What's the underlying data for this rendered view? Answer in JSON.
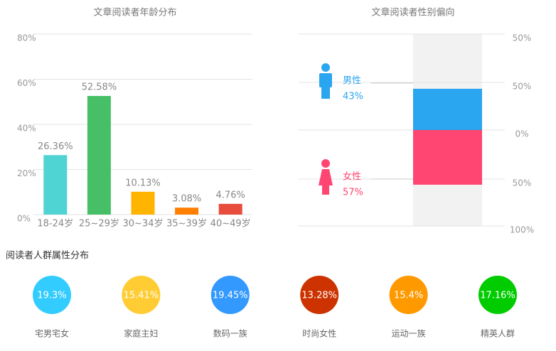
{
  "chart_data": [
    {
      "type": "bar",
      "title": "文章阅读者年龄分布",
      "categories": [
        "18-24岁",
        "25~29岁",
        "30~34岁",
        "35~39岁",
        "40~49岁"
      ],
      "values": [
        26.36,
        52.58,
        10.13,
        3.08,
        4.76
      ],
      "value_labels": [
        "26.36%",
        "52.58%",
        "10.13%",
        "3.08%",
        "4.76%"
      ],
      "colors": [
        "#4fd3d3",
        "#46bf66",
        "#ffb400",
        "#ff7f00",
        "#e84c3d"
      ],
      "ylim": [
        0,
        80
      ],
      "yticks": [
        {
          "value": 0,
          "label": "0%"
        },
        {
          "value": 20,
          "label": "20%"
        },
        {
          "value": 40,
          "label": "40%"
        },
        {
          "value": 60,
          "label": "60%"
        },
        {
          "value": 80,
          "label": "80%"
        }
      ],
      "grid": true
    },
    {
      "type": "diverging",
      "title": "文章阅读者性别偏向",
      "axis_labels": [
        "50%",
        "50%",
        "0%",
        "50%",
        "100%"
      ],
      "ylim": [
        -100,
        100
      ],
      "series": [
        {
          "name": "男性",
          "color": "#2aa5f0",
          "values": [
            43
          ],
          "value_labels": [
            "43%"
          ]
        },
        {
          "name": "女性",
          "color": "#ff4571",
          "values": [
            57
          ],
          "value_labels": [
            "57%"
          ]
        }
      ]
    },
    {
      "type": "circles",
      "title": "阅读者人群属性分布",
      "categories": [
        "宅男宅女",
        "家庭主妇",
        "数码一族",
        "时尚女性",
        "运动一族",
        "精英人群"
      ],
      "values": [
        19.3,
        15.41,
        19.45,
        13.28,
        15.4,
        17.16
      ],
      "value_labels": [
        "19.3%",
        "15.41%",
        "19.45%",
        "13.28%",
        "15.4%",
        "17.16%"
      ],
      "colors": [
        "#33ccff",
        "#ffcc33",
        "#3399ff",
        "#cc3300",
        "#ff9900",
        "#00cc00"
      ]
    }
  ]
}
